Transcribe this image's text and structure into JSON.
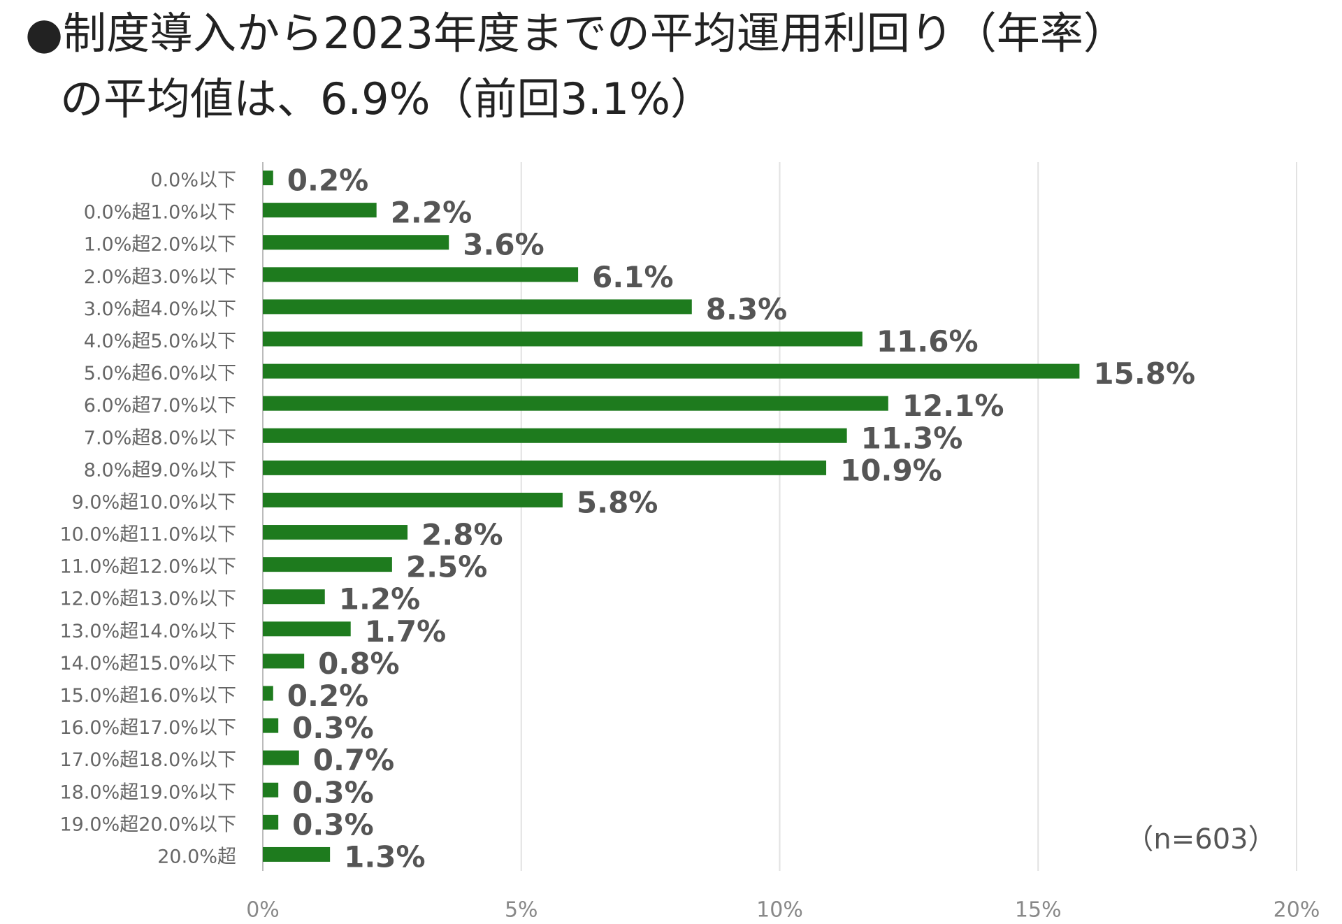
{
  "chart_data": {
    "type": "bar",
    "title": [
      "●制度導入から2023年度までの平均運用利回り（年率）",
      "の平均値は、6.9%（前回3.1%）"
    ],
    "annotation": "（n=603）",
    "categories": [
      "0.0%以下",
      "0.0%超1.0%以下",
      "1.0%超2.0%以下",
      "2.0%超3.0%以下",
      "3.0%超4.0%以下",
      "4.0%超5.0%以下",
      "5.0%超6.0%以下",
      "6.0%超7.0%以下",
      "7.0%超8.0%以下",
      "8.0%超9.0%以下",
      "9.0%超10.0%以下",
      "10.0%超11.0%以下",
      "11.0%超12.0%以下",
      "12.0%超13.0%以下",
      "13.0%超14.0%以下",
      "14.0%超15.0%以下",
      "15.0%超16.0%以下",
      "16.0%超17.0%以下",
      "17.0%超18.0%以下",
      "18.0%超19.0%以下",
      "19.0%超20.0%以下",
      "20.0%超"
    ],
    "values": [
      0.2,
      2.2,
      3.6,
      6.1,
      8.3,
      11.6,
      15.8,
      12.1,
      11.3,
      10.9,
      5.8,
      2.8,
      2.5,
      1.2,
      1.7,
      0.8,
      0.2,
      0.3,
      0.7,
      0.3,
      0.3,
      1.3
    ],
    "value_labels": [
      "0.2%",
      "2.2%",
      "3.6%",
      "6.1%",
      "8.3%",
      "11.6%",
      "15.8%",
      "12.1%",
      "11.3%",
      "10.9%",
      "5.8%",
      "2.8%",
      "2.5%",
      "1.2%",
      "1.7%",
      "0.8%",
      "0.2%",
      "0.3%",
      "0.7%",
      "0.3%",
      "0.3%",
      "1.3%"
    ],
    "color": "#1e7b1e",
    "xlim": [
      0,
      20
    ],
    "xticks": [
      {
        "value": 0,
        "label": "0%"
      },
      {
        "value": 5,
        "label": "5%"
      },
      {
        "value": 10,
        "label": "10%"
      },
      {
        "value": 15,
        "label": "15%"
      },
      {
        "value": 20,
        "label": "20%"
      }
    ],
    "grid": true
  }
}
